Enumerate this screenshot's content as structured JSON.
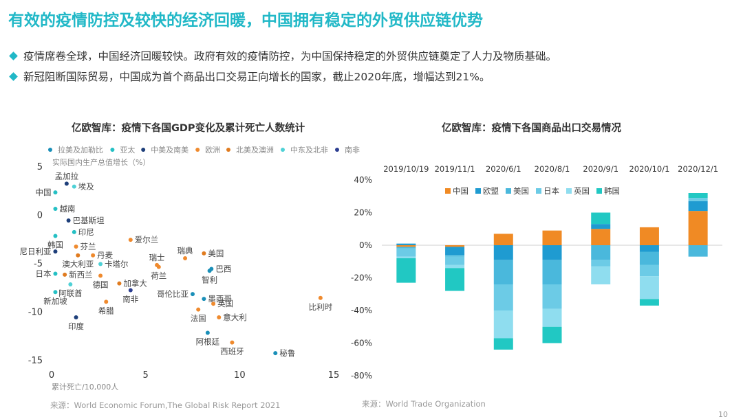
{
  "title": "有效的疫情防控及较快的经济回暖，中国拥有稳定的外贸供应链优势",
  "bullets": [
    "疫情席卷全球，中国经济回暖较快。政府有效的疫情防控，为中国保持稳定的外贸供应链奠定了人力及物质基础。",
    "新冠阻断国际贸易，中国成为首个商品出口交易正向增长的国家，截止2020年底，增幅达到21%。"
  ],
  "left_panel": {
    "title": "亿欧智库：疫情下各国GDP变化及累计死亡人数统计",
    "source": "来源：World Economic Forum,The Global Risk Report 2021"
  },
  "right_panel": {
    "title": "亿欧智库：疫情下各国商品出口交易情况",
    "source": "来源：World Trade Organization"
  },
  "page_number": "10",
  "chart_data": [
    {
      "type": "scatter",
      "title": "亿欧智库：疫情下各国GDP变化及累计死亡人数统计",
      "ylabel": "实际国内生产总值增长（%）",
      "xlabel": "累计死亡/10,000人",
      "xlim": [
        0,
        15
      ],
      "ylim": [
        -15,
        5
      ],
      "xticks": [
        "0",
        "5",
        "10",
        "15"
      ],
      "yticks": [
        "5",
        "0",
        "-5",
        "-10",
        "-15"
      ],
      "legend": [
        {
          "name": "拉美及加勒比",
          "color": "#1a8fb8"
        },
        {
          "name": "亚太",
          "color": "#25c0c4"
        },
        {
          "name": "中美及南美",
          "color": "#1e3f7a"
        },
        {
          "name": "欧洲",
          "color": "#ef8a2e"
        },
        {
          "name": "北美及澳洲",
          "color": "#e07b1f"
        },
        {
          "name": "中东及北非",
          "color": "#4fd1d6"
        },
        {
          "name": "南非",
          "color": "#2c3e91"
        }
      ],
      "points": [
        {
          "label": "孟加拉",
          "x": 0.8,
          "y": 3.2,
          "color": "#1e3f7a",
          "label_pos": "above"
        },
        {
          "label": "中国",
          "x": 0.2,
          "y": 2.3,
          "color": "#25c0c4",
          "label_pos": "left"
        },
        {
          "label": "埃及",
          "x": 1.2,
          "y": 2.9,
          "color": "#4fd1d6",
          "label_pos": "right"
        },
        {
          "label": "越南",
          "x": 0.2,
          "y": 0.6,
          "color": "#25c0c4",
          "label_pos": "right"
        },
        {
          "label": "巴基斯坦",
          "x": 0.9,
          "y": -0.6,
          "color": "#1e3f7a",
          "label_pos": "right"
        },
        {
          "label": "印尼",
          "x": 1.2,
          "y": -1.8,
          "color": "#25c0c4",
          "label_pos": "right"
        },
        {
          "label": "韩国",
          "x": 0.2,
          "y": -2.2,
          "color": "#25c0c4",
          "label_pos": "below"
        },
        {
          "label": "芬兰",
          "x": 1.3,
          "y": -3.3,
          "color": "#ef8a2e",
          "label_pos": "right"
        },
        {
          "label": "尼日利亚",
          "x": 0.2,
          "y": -3.8,
          "color": "#1e3f7a",
          "label_pos": "left"
        },
        {
          "label": "丹麦",
          "x": 2.2,
          "y": -4.2,
          "color": "#ef8a2e",
          "label_pos": "right"
        },
        {
          "label": "澳大利亚",
          "x": 1.4,
          "y": -4.2,
          "color": "#e07b1f",
          "label_pos": "below"
        },
        {
          "label": "卡塔尔",
          "x": 2.6,
          "y": -5.1,
          "color": "#4fd1d6",
          "label_pos": "right"
        },
        {
          "label": "日本",
          "x": 0.2,
          "y": -6.1,
          "color": "#25c0c4",
          "label_pos": "left"
        },
        {
          "label": "新西兰",
          "x": 0.7,
          "y": -6.2,
          "color": "#e07b1f",
          "label_pos": "right"
        },
        {
          "label": "德国",
          "x": 2.6,
          "y": -6.3,
          "color": "#ef8a2e",
          "label_pos": "below"
        },
        {
          "label": "加拿大",
          "x": 3.6,
          "y": -7.1,
          "color": "#e07b1f",
          "label_pos": "right"
        },
        {
          "label": "阿联酋",
          "x": 1.0,
          "y": -7.2,
          "color": "#4fd1d6",
          "label_pos": "below"
        },
        {
          "label": "新加坡",
          "x": 0.2,
          "y": -8.0,
          "color": "#25c0c4",
          "label_pos": "below"
        },
        {
          "label": "南非",
          "x": 4.2,
          "y": -7.8,
          "color": "#2c3e91",
          "label_pos": "below"
        },
        {
          "label": "希腊",
          "x": 2.9,
          "y": -9.0,
          "color": "#ef8a2e",
          "label_pos": "below"
        },
        {
          "label": "印度",
          "x": 1.3,
          "y": -10.6,
          "color": "#1e3f7a",
          "label_pos": "below"
        },
        {
          "label": "爱尔兰",
          "x": 4.2,
          "y": -2.6,
          "color": "#ef8a2e",
          "label_pos": "right"
        },
        {
          "label": "瑞士",
          "x": 5.6,
          "y": -5.2,
          "color": "#ef8a2e",
          "label_pos": "above"
        },
        {
          "label": "荷兰",
          "x": 5.7,
          "y": -5.4,
          "color": "#ef8a2e",
          "label_pos": "below"
        },
        {
          "label": "瑞典",
          "x": 7.1,
          "y": -4.5,
          "color": "#ef8a2e",
          "label_pos": "above"
        },
        {
          "label": "美国",
          "x": 8.1,
          "y": -4.0,
          "color": "#e07b1f",
          "label_pos": "right"
        },
        {
          "label": "巴西",
          "x": 8.5,
          "y": -5.6,
          "color": "#1a8fb8",
          "label_pos": "right"
        },
        {
          "label": "智利",
          "x": 8.4,
          "y": -5.8,
          "color": "#1a8fb8",
          "label_pos": "below"
        },
        {
          "label": "哥伦比亚",
          "x": 7.5,
          "y": -8.2,
          "color": "#1a8fb8",
          "label_pos": "left"
        },
        {
          "label": "墨西哥",
          "x": 8.1,
          "y": -8.7,
          "color": "#1a8fb8",
          "label_pos": "right"
        },
        {
          "label": "英国",
          "x": 8.6,
          "y": -9.2,
          "color": "#ef8a2e",
          "label_pos": "right"
        },
        {
          "label": "法国",
          "x": 7.8,
          "y": -9.8,
          "color": "#ef8a2e",
          "label_pos": "below"
        },
        {
          "label": "意大利",
          "x": 8.9,
          "y": -10.6,
          "color": "#ef8a2e",
          "label_pos": "right"
        },
        {
          "label": "阿根廷",
          "x": 8.3,
          "y": -12.2,
          "color": "#1a8fb8",
          "label_pos": "below"
        },
        {
          "label": "西班牙",
          "x": 9.6,
          "y": -13.2,
          "color": "#ef8a2e",
          "label_pos": "below"
        },
        {
          "label": "秘鲁",
          "x": 11.9,
          "y": -14.3,
          "color": "#1a8fb8",
          "label_pos": "right"
        },
        {
          "label": "比利时",
          "x": 14.3,
          "y": -8.6,
          "color": "#ef8a2e",
          "label_pos": "below"
        }
      ]
    },
    {
      "type": "bar",
      "stacked": true,
      "title": "亿欧智库：疫情下各国商品出口交易情况",
      "categories": [
        "2019/10/19",
        "2019/11/1",
        "2020/6/1",
        "2020/8/1",
        "2020/9/1",
        "2020/10/1",
        "2020/12/1"
      ],
      "ylim": [
        -80,
        40
      ],
      "yticks": [
        "40%",
        "20%",
        "0%",
        "-20%",
        "-40%",
        "-60%",
        "-80%"
      ],
      "series": [
        {
          "name": "中国",
          "color": "#f08a24",
          "values": [
            -1,
            -1,
            7,
            9,
            10,
            11,
            21
          ]
        },
        {
          "name": "欧盟",
          "color": "#1f9bd1",
          "values": [
            1,
            -5,
            -9,
            -9,
            3,
            -4,
            6
          ]
        },
        {
          "name": "美国",
          "color": "#4ab8dc",
          "values": [
            -1,
            -1,
            -15,
            -15,
            -9,
            -8,
            -7
          ]
        },
        {
          "name": "日本",
          "color": "#6ccbe6",
          "values": [
            -5,
            -5,
            -16,
            -15,
            -4,
            -7,
            2
          ]
        },
        {
          "name": "英国",
          "color": "#8fddef",
          "values": [
            -1,
            -2,
            -17,
            -11,
            -11,
            -14,
            0
          ]
        },
        {
          "name": "韩国",
          "color": "#21c8c3",
          "values": [
            -15,
            -14,
            -7,
            -10,
            7,
            -4,
            3
          ]
        }
      ]
    }
  ]
}
